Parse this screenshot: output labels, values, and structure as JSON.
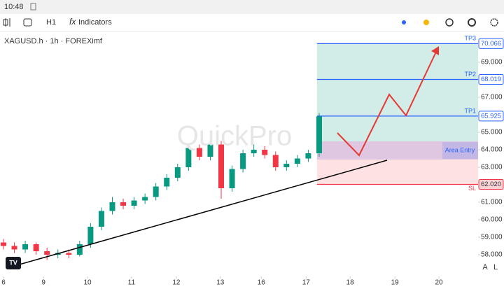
{
  "status_bar": {
    "time": "10:48"
  },
  "toolbar": {
    "interval": "H1",
    "indicators": "Indicators"
  },
  "chart_data": {
    "type": "candlestick",
    "title": "XAGUSD.h · 1h · FOREXimf",
    "watermark": "QuickPro",
    "x": [
      0,
      0.25,
      0.5,
      0.75,
      1,
      1.25,
      1.5,
      1.75,
      2,
      2.25,
      2.5,
      2.75,
      3,
      3.25,
      3.5,
      3.75,
      4,
      4.25,
      4.5,
      4.75,
      5,
      5.25,
      5.5,
      5.75,
      6,
      6.25,
      6.5,
      6.75,
      7,
      7.25
    ],
    "open": [
      58.7,
      58.5,
      58.3,
      58.6,
      58.2,
      58.0,
      58.1,
      58.0,
      58.6,
      59.6,
      60.5,
      61.0,
      60.8,
      61.1,
      61.3,
      61.9,
      62.4,
      63.0,
      64.1,
      63.6,
      64.3,
      61.8,
      62.9,
      63.8,
      64.0,
      63.7,
      63.0,
      63.2,
      63.5,
      63.8
    ],
    "high": [
      58.9,
      58.7,
      58.8,
      58.7,
      58.4,
      58.3,
      58.3,
      58.8,
      59.8,
      60.7,
      61.3,
      61.2,
      61.3,
      61.5,
      62.1,
      62.6,
      63.2,
      64.3,
      64.3,
      64.5,
      64.5,
      63.1,
      64.0,
      64.3,
      64.2,
      63.9,
      63.4,
      63.7,
      64.0,
      66.1
    ],
    "low": [
      58.3,
      58.1,
      58.1,
      58.0,
      57.7,
      57.8,
      57.8,
      57.9,
      58.4,
      59.4,
      60.3,
      60.6,
      60.6,
      60.9,
      61.1,
      61.7,
      62.2,
      62.8,
      63.4,
      63.4,
      61.2,
      61.6,
      62.7,
      63.6,
      63.5,
      62.8,
      62.8,
      63.0,
      63.3,
      63.6
    ],
    "close": [
      58.5,
      58.3,
      58.6,
      58.2,
      58.0,
      58.1,
      58.0,
      58.6,
      59.6,
      60.5,
      61.0,
      60.8,
      61.1,
      61.3,
      61.9,
      62.4,
      63.0,
      64.1,
      63.6,
      64.3,
      61.8,
      62.9,
      63.8,
      64.0,
      63.7,
      63.0,
      63.2,
      63.5,
      63.8,
      65.9
    ],
    "up_color": "#089981",
    "down_color": "#f23645",
    "xlim": [
      -0.08,
      10.9
    ],
    "xticks": [
      {
        "value": 0,
        "label": "6"
      },
      {
        "value": 0.92,
        "label": "9"
      },
      {
        "value": 1.93,
        "label": "10"
      },
      {
        "value": 2.94,
        "label": "11"
      },
      {
        "value": 3.97,
        "label": "12"
      },
      {
        "value": 4.98,
        "label": "13"
      },
      {
        "value": 5.92,
        "label": "16"
      },
      {
        "value": 6.95,
        "label": "17"
      },
      {
        "value": 7.96,
        "label": "18"
      },
      {
        "value": 8.99,
        "label": "19"
      },
      {
        "value": 10.0,
        "label": "20"
      }
    ],
    "ylim": [
      56.76,
      70.76
    ],
    "yticks": [
      {
        "value": 69,
        "label": "69.000"
      },
      {
        "value": 67,
        "label": "67.000"
      },
      {
        "value": 65,
        "label": "65.000"
      },
      {
        "value": 64,
        "label": "64.000"
      },
      {
        "value": 63,
        "label": "63.000"
      },
      {
        "value": 61,
        "label": "61.000"
      },
      {
        "value": 60,
        "label": "60.000"
      },
      {
        "value": 59,
        "label": "59.000"
      },
      {
        "value": 58,
        "label": "58.000"
      }
    ],
    "position_start": 7.2,
    "levels": [
      {
        "name": "TP3",
        "value": 70.066,
        "label": "70.066",
        "color": "#2962ff"
      },
      {
        "name": "TP2",
        "value": 68.019,
        "label": "68.019",
        "color": "#2962ff"
      },
      {
        "name": "TP1",
        "value": 65.925,
        "label": "65.925",
        "color": "#2962ff"
      },
      {
        "name": "SL",
        "value": 62.02,
        "label": "62.020",
        "color": "#f23645"
      }
    ],
    "entry_area": {
      "name": "Area Entry",
      "top": 64.48,
      "bottom": 63.44
    }
  },
  "axis_buttons": [
    "A",
    "L"
  ]
}
